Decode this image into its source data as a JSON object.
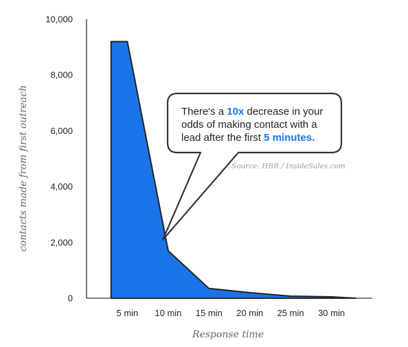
{
  "chart_data": {
    "type": "area",
    "categories": [
      "5 min",
      "10 min",
      "15 min",
      "20 min",
      "25 min",
      "30 min"
    ],
    "x": [
      3,
      5,
      10,
      15,
      20,
      25,
      30,
      33
    ],
    "values": [
      9200,
      9200,
      1700,
      350,
      200,
      75,
      50,
      0
    ],
    "title": "",
    "xlabel": "Response time",
    "ylabel": "contacts made from first outreach",
    "ylim": [
      0,
      10000
    ],
    "y_ticks": [
      {
        "value": 0,
        "label": "0"
      },
      {
        "value": 2000,
        "label": "2,000"
      },
      {
        "value": 4000,
        "label": "4,000"
      },
      {
        "value": 6000,
        "label": "6,000"
      },
      {
        "value": 8000,
        "label": "8,000"
      },
      {
        "value": 10000,
        "label": "10,000"
      }
    ],
    "grid": false,
    "colors": {
      "fill": "#1a74e8",
      "stroke": "#222222",
      "accent": "#1a74e8"
    },
    "annotation": {
      "line1": "There's a ",
      "line1_em": "10x",
      "line1_tail": " decrease in your",
      "line2": "odds of making contact with a",
      "line3": "lead after the first ",
      "line3_em": "5 minutes."
    },
    "source": "Source: HBR / InsideSales.com"
  }
}
